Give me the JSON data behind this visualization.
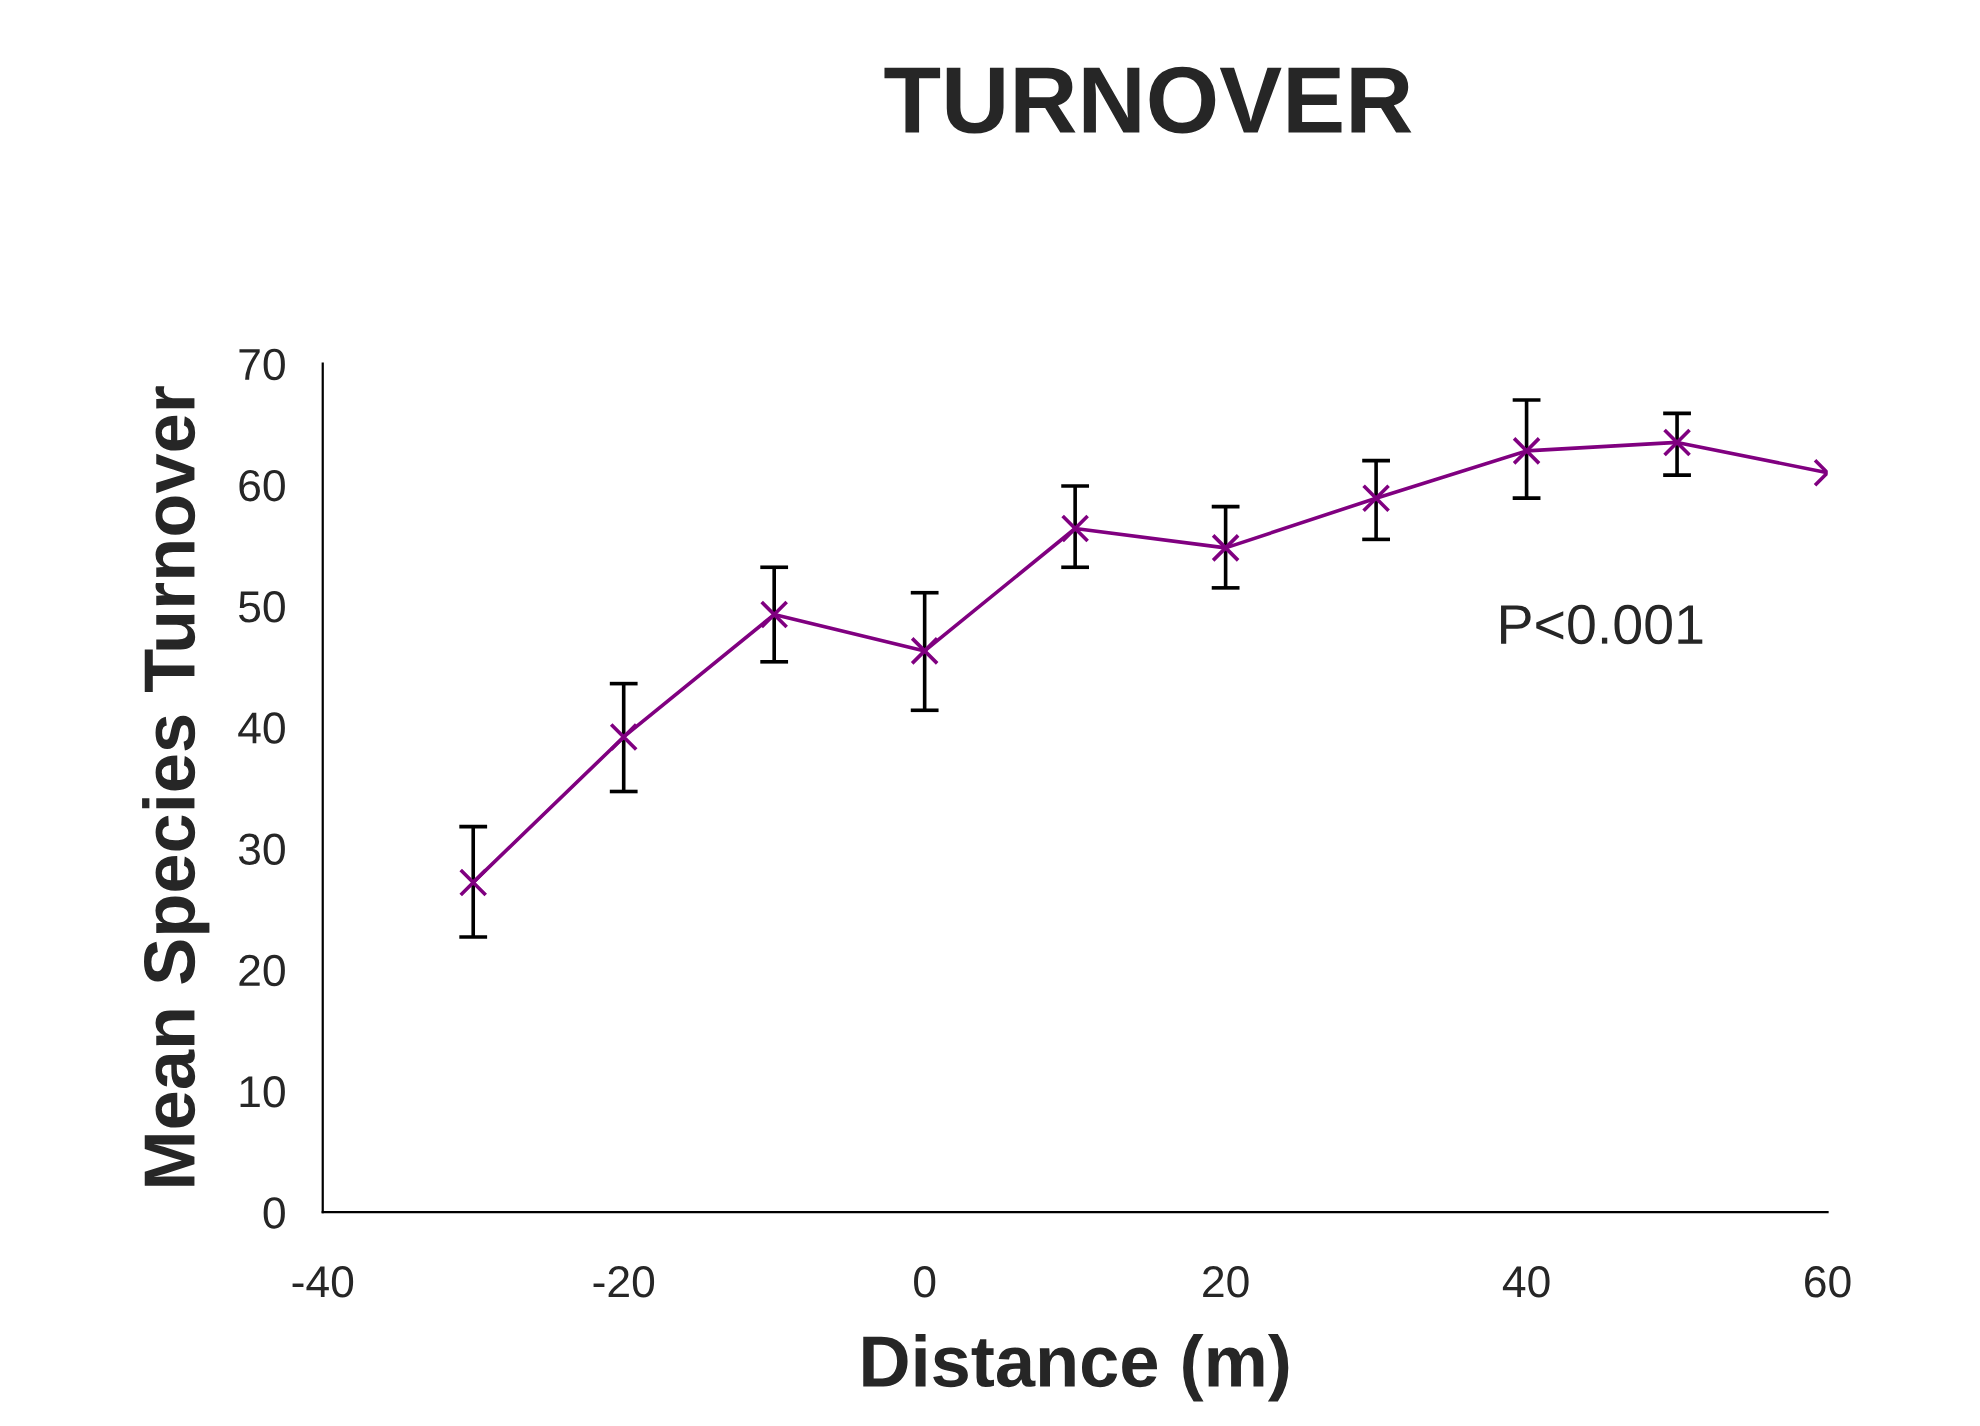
{
  "chart_data": {
    "type": "line",
    "title": "TURNOVER",
    "xlabel": "Distance (m)",
    "ylabel": "Mean Species Turnover",
    "x": [
      -30,
      -20,
      -10,
      0,
      10,
      20,
      30,
      40,
      50,
      60
    ],
    "series": [
      {
        "color": "#800080",
        "values": [
          27.2,
          39.2,
          49.3,
          46.3,
          56.4,
          54.8,
          58.9,
          62.8,
          63.5,
          61.0
        ],
        "errors": [
          [
            22.7,
            31.8
          ],
          [
            34.7,
            43.6
          ],
          [
            45.4,
            53.2
          ],
          [
            41.4,
            51.1
          ],
          [
            53.2,
            59.9
          ],
          [
            51.5,
            58.2
          ],
          [
            55.5,
            62.0
          ],
          [
            58.9,
            67.0
          ],
          [
            60.8,
            65.9
          ],
          null
        ]
      }
    ],
    "xlim": [
      -40,
      60
    ],
    "xticks": [
      -40,
      -20,
      0,
      20,
      40,
      60
    ],
    "ylim": [
      0,
      70
    ],
    "yticks": [
      0,
      10,
      20,
      30,
      40,
      50,
      60,
      70
    ],
    "annotations": [
      "P<0.001"
    ],
    "marker": "cross",
    "line_style": "solid",
    "grid": false,
    "legend": false
  }
}
